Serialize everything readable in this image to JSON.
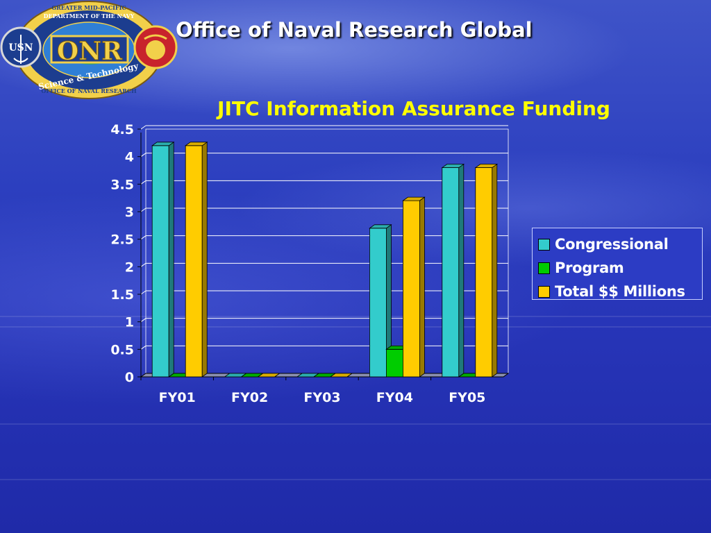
{
  "header": {
    "org_title": "Office of Naval Research Global",
    "logo": {
      "ring_top_text": "GREATER MID-PACIFIC",
      "ring_text": "DEPARTMENT OF THE NAVY",
      "center_text": "ONR",
      "ribbon_text": "Science & Technology",
      "ring_bottom_text": "OFFICE OF NAVAL RESEARCH",
      "left_seal_text": "USN",
      "icons": [
        "anchor-icon",
        "globe-icon",
        "eagle-globe-anchor-icon"
      ]
    }
  },
  "chart_data": {
    "type": "bar",
    "title": "JITC Information Assurance Funding",
    "xlabel": "",
    "ylabel": "",
    "categories": [
      "FY01",
      "FY02",
      "FY03",
      "FY04",
      "FY05"
    ],
    "series": [
      {
        "name": "Congressional",
        "values": [
          4.2,
          0,
          0,
          2.7,
          3.8
        ],
        "color": "#33cccc"
      },
      {
        "name": "Program",
        "values": [
          0,
          0,
          0,
          0.5,
          0
        ],
        "color": "#00cc00"
      },
      {
        "name": "Total $$ Millions",
        "values": [
          4.2,
          0,
          0,
          3.2,
          3.8
        ],
        "color": "#ffcc00"
      }
    ],
    "ylim": [
      0,
      4.5
    ],
    "yticks": [
      "0",
      "0.5",
      "1",
      "1.5",
      "2",
      "2.5",
      "3",
      "3.5",
      "4",
      "4.5"
    ],
    "grid": true,
    "legend_position": "right",
    "title_color": "#ffff00",
    "three_d": true
  }
}
